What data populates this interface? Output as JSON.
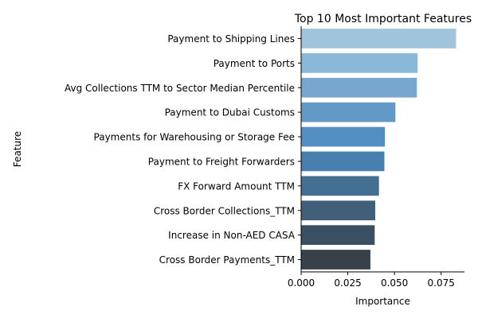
{
  "chart_data": {
    "type": "bar",
    "orientation": "horizontal",
    "title": "Top 10 Most Important Features",
    "xlabel": "Importance",
    "ylabel": "Feature",
    "xlim": [
      0,
      0.0875
    ],
    "xticks": [
      "0.000",
      "0.025",
      "0.050",
      "0.075"
    ],
    "xtick_values": [
      0,
      0.025,
      0.05,
      0.075
    ],
    "grid": false,
    "categories": [
      "Payment to Shipping Lines",
      "Payment to Ports",
      "Avg Collections TTM to Sector Median Percentile",
      "Payment to Dubai Customs",
      "Payments for Warehousing or Storage Fee",
      "Payment to Freight Forwarders",
      "FX Forward Amount TTM",
      "Cross Border Collections_TTM",
      "Increase in Non-AED CASA",
      "Cross Border Payments_TTM"
    ],
    "values": [
      0.083,
      0.0624,
      0.062,
      0.0505,
      0.0449,
      0.0446,
      0.0417,
      0.0397,
      0.0394,
      0.0371
    ],
    "colors": [
      "#a0c4db",
      "#8ab8d8",
      "#77a6cf",
      "#6399c7",
      "#528ec1",
      "#467fae",
      "#436f92",
      "#415f78",
      "#3b4f63",
      "#374248"
    ]
  }
}
